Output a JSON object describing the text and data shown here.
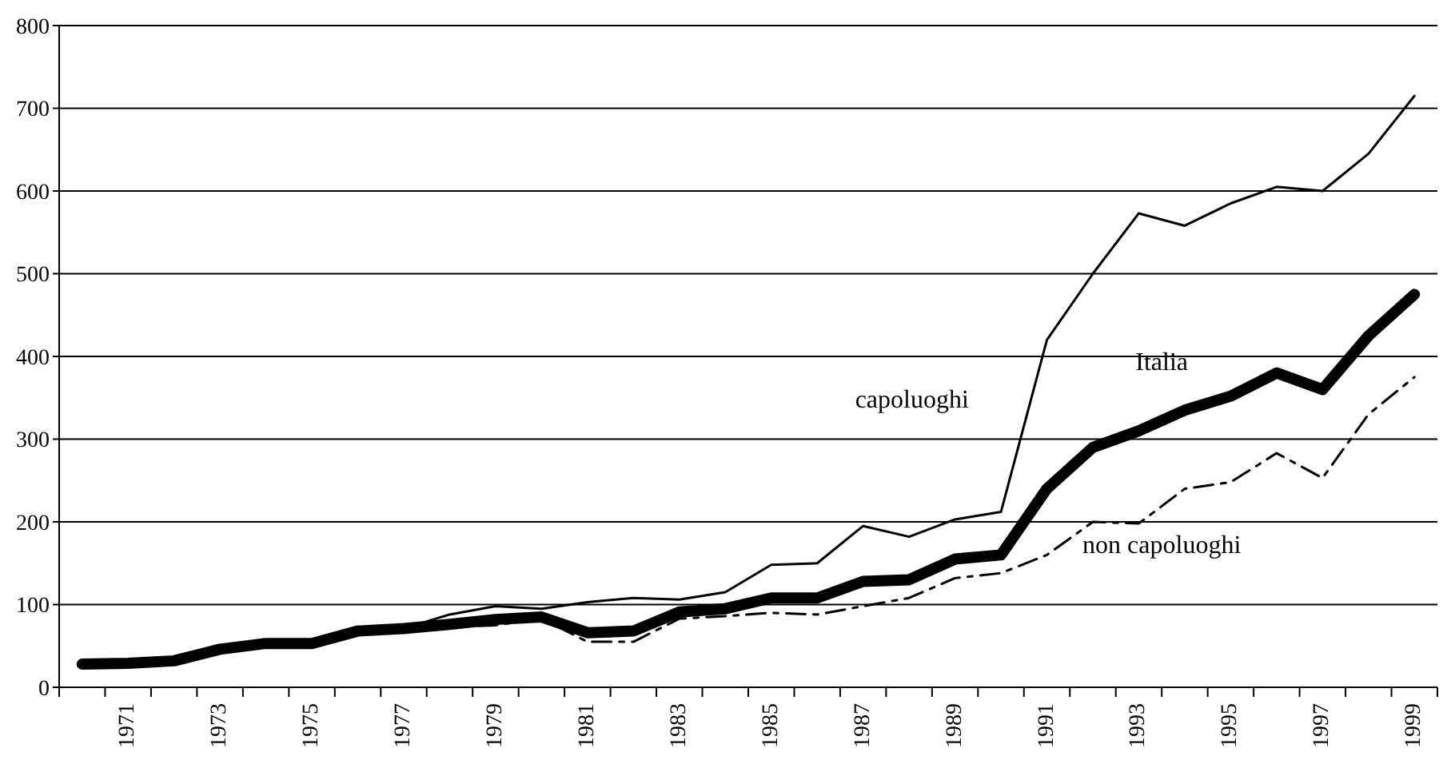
{
  "chart_data": {
    "type": "line",
    "categories": [
      null,
      "1971",
      null,
      "1973",
      null,
      "1975",
      null,
      "1977",
      null,
      "1979",
      null,
      "1981",
      null,
      "1983",
      null,
      "1985",
      null,
      "1987",
      null,
      "1989",
      null,
      "1991",
      null,
      "1993",
      null,
      "1995",
      null,
      "1997",
      null,
      "1999"
    ],
    "series": [
      {
        "name": "capoluoghi",
        "color": "#000000",
        "line_style": "solid",
        "values": [
          28,
          29,
          32,
          46,
          53,
          53,
          68,
          71,
          88,
          98,
          95,
          103,
          108,
          106,
          115,
          148,
          150,
          195,
          182,
          203,
          212,
          420,
          500,
          573,
          558,
          585,
          605,
          600,
          645,
          715
        ]
      },
      {
        "name": "Italia",
        "color": "#000000",
        "line_style": "solid",
        "values": [
          28,
          29,
          32,
          46,
          53,
          53,
          68,
          71,
          76,
          82,
          85,
          66,
          68,
          91,
          95,
          108,
          108,
          128,
          130,
          155,
          160,
          240,
          290,
          310,
          335,
          352,
          380,
          360,
          425,
          475
        ]
      },
      {
        "name": "non capoluoghi",
        "color": "#000000",
        "line_style": "dashed",
        "values": [
          27,
          28,
          31,
          45,
          52,
          52,
          67,
          70,
          73,
          75,
          83,
          55,
          55,
          83,
          86,
          90,
          88,
          98,
          108,
          132,
          138,
          160,
          200,
          198,
          240,
          248,
          283,
          253,
          330,
          375
        ]
      }
    ],
    "ylim": [
      0,
      800
    ],
    "yticks": [
      0,
      100,
      200,
      300,
      400,
      500,
      600,
      700,
      800
    ],
    "grid": "y",
    "marker": "none"
  }
}
